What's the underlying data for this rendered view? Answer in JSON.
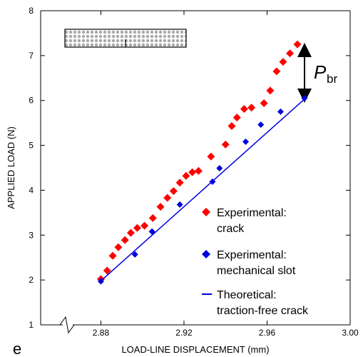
{
  "chart_data": {
    "type": "scatter",
    "panel_label": "e",
    "x_label": "LOAD-LINE DISPLACEMENT (mm)",
    "y_label": "APPLIED LOAD (N)",
    "annotation": {
      "symbol": "P",
      "subscript": "br"
    },
    "xlim": [
      2.851,
      3.0
    ],
    "ylim": [
      1,
      8
    ],
    "xticks": [
      2.88,
      2.92,
      2.96,
      {
        "value": 3,
        "label": "3.00"
      }
    ],
    "yticks": [
      1,
      2,
      3,
      4,
      5,
      6,
      7,
      8
    ],
    "series": [
      {
        "name": "Experimental:\ncrack",
        "color": "#ff0000",
        "marker": "diamond",
        "x": [
          2.88,
          2.883,
          2.8857,
          2.8884,
          2.8916,
          2.8944,
          2.8975,
          2.901,
          2.905,
          2.9087,
          2.912,
          2.915,
          2.918,
          2.921,
          2.924,
          2.927,
          2.933,
          2.94,
          2.943,
          2.9455,
          2.949,
          2.9525,
          2.9585,
          2.9615,
          2.9646,
          2.9677,
          2.971,
          2.9746
        ],
        "values": [
          2.02,
          2.21,
          2.54,
          2.73,
          2.89,
          3.05,
          3.16,
          3.21,
          3.38,
          3.63,
          3.83,
          3.98,
          4.17,
          4.32,
          4.4,
          4.43,
          4.75,
          5.02,
          5.43,
          5.62,
          5.81,
          5.84,
          5.94,
          6.22,
          6.65,
          6.86,
          7.05,
          7.25
        ]
      },
      {
        "name": "Experimental:\nmechanical slot",
        "color": "#0000dd",
        "marker": "diamond",
        "x": [
          2.88,
          2.8964,
          2.9046,
          2.918,
          2.9337,
          2.9371,
          2.9497,
          2.957,
          2.9665,
          2.978
        ],
        "values": [
          1.97,
          2.57,
          3.08,
          3.68,
          4.19,
          4.49,
          5.08,
          5.46,
          5.75,
          6.05
        ]
      },
      {
        "name": "Theoretical:\ntraction-free crack",
        "color": "#0000dd",
        "marker": "line",
        "x": [
          2.88,
          2.978
        ],
        "values": [
          1.98,
          6.03
        ]
      }
    ]
  }
}
